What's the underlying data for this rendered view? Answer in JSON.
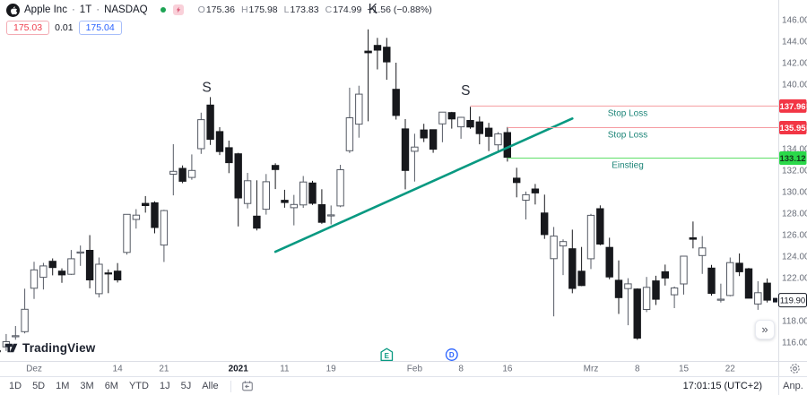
{
  "header": {
    "symbol": "Apple Inc",
    "sep": "·",
    "interval": "1T",
    "exchange": "NASDAQ",
    "ohlc": [
      {
        "label": "O",
        "value": "175.36"
      },
      {
        "label": "H",
        "value": "175.98"
      },
      {
        "label": "L",
        "value": "173.83"
      },
      {
        "label": "C",
        "value": "174.99"
      }
    ],
    "change": "−1.56 (−0.88%)",
    "bid": "175.03",
    "spread": "0.01",
    "ask": "175.04"
  },
  "watermark": {
    "text": "TradingView"
  },
  "toolbar": {
    "ranges": [
      "1D",
      "5D",
      "1M",
      "3M",
      "6M",
      "YTD",
      "1J",
      "5J",
      "Alle"
    ],
    "clock": "17:01:15 (UTC+2)",
    "adjust_label": "Anp.",
    "scroll_glyph": "»"
  },
  "chart_data": {
    "type": "candlestick",
    "price_axis": {
      "ticks": [
        146,
        144,
        142,
        140,
        138,
        136,
        134,
        132,
        130,
        128,
        126,
        124,
        122,
        120,
        118,
        116
      ],
      "visible_range": [
        114.2,
        147.8
      ]
    },
    "time_axis": {
      "ticks": [
        {
          "label": "Dez",
          "index": 4,
          "bold": false
        },
        {
          "label": "14",
          "index": 13,
          "bold": false
        },
        {
          "label": "21",
          "index": 18,
          "bold": false
        },
        {
          "label": "2021",
          "index": 26,
          "bold": true
        },
        {
          "label": "11",
          "index": 31,
          "bold": false
        },
        {
          "label": "19",
          "index": 36,
          "bold": false
        },
        {
          "label": "Feb",
          "index": 45,
          "bold": false
        },
        {
          "label": "8",
          "index": 50,
          "bold": false
        },
        {
          "label": "16",
          "index": 55,
          "bold": false
        },
        {
          "label": "Mrz",
          "index": 64,
          "bold": false
        },
        {
          "label": "8",
          "index": 69,
          "bold": false
        },
        {
          "label": "15",
          "index": 74,
          "bold": false
        },
        {
          "label": "22",
          "index": 79,
          "bold": false
        }
      ]
    },
    "styles": {
      "up_fill": "#ffffff",
      "up_border": "#555a64",
      "down_fill": "#17181c",
      "wick_up": "#555a64",
      "wick_down": "#17181c"
    },
    "candles": [
      [
        115.2,
        116.4,
        114.5,
        115.17
      ],
      [
        115.55,
        116.75,
        115.17,
        116.03
      ],
      [
        116.57,
        117.49,
        116.22,
        116.59
      ],
      [
        116.97,
        120.97,
        116.81,
        119.05
      ],
      [
        121.01,
        123.47,
        120.01,
        122.72
      ],
      [
        122.02,
        123.37,
        120.89,
        123.08
      ],
      [
        123.52,
        123.78,
        122.21,
        122.94
      ],
      [
        122.6,
        122.86,
        121.52,
        122.25
      ],
      [
        122.31,
        124.57,
        122.25,
        123.75
      ],
      [
        124.37,
        124.98,
        123.09,
        124.38
      ],
      [
        124.53,
        125.95,
        121.0,
        121.78
      ],
      [
        120.5,
        123.87,
        120.15,
        123.24
      ],
      [
        122.43,
        122.76,
        120.55,
        122.41
      ],
      [
        122.6,
        123.35,
        121.54,
        121.78
      ],
      [
        124.34,
        127.9,
        124.13,
        127.88
      ],
      [
        127.41,
        128.37,
        126.56,
        127.81
      ],
      [
        128.9,
        129.58,
        128.04,
        128.7
      ],
      [
        128.96,
        129.1,
        126.12,
        126.66
      ],
      [
        125.02,
        128.31,
        123.45,
        128.23
      ],
      [
        131.61,
        134.41,
        129.65,
        131.88
      ],
      [
        132.16,
        132.43,
        130.78,
        130.96
      ],
      [
        131.32,
        133.46,
        131.1,
        131.97
      ],
      [
        133.99,
        137.34,
        133.51,
        136.69
      ],
      [
        138.05,
        138.79,
        134.34,
        134.87
      ],
      [
        135.58,
        135.99,
        133.4,
        133.72
      ],
      [
        134.08,
        134.74,
        131.72,
        132.69
      ],
      [
        133.52,
        133.61,
        126.76,
        129.41
      ],
      [
        128.89,
        131.74,
        128.43,
        131.01
      ],
      [
        127.72,
        131.05,
        126.38,
        126.6
      ],
      [
        128.36,
        131.63,
        127.86,
        130.92
      ],
      [
        132.43,
        132.63,
        130.23,
        132.05
      ],
      [
        129.19,
        130.17,
        128.5,
        128.98
      ],
      [
        128.5,
        129.69,
        126.86,
        128.8
      ],
      [
        128.76,
        131.45,
        128.49,
        130.89
      ],
      [
        130.8,
        131.0,
        128.76,
        128.91
      ],
      [
        128.78,
        130.22,
        127.0,
        127.14
      ],
      [
        127.78,
        128.71,
        126.94,
        127.83
      ],
      [
        128.66,
        132.49,
        128.55,
        132.03
      ],
      [
        133.8,
        139.67,
        133.59,
        136.87
      ],
      [
        136.28,
        139.85,
        135.02,
        139.07
      ],
      [
        143.07,
        145.09,
        136.54,
        142.92
      ],
      [
        143.6,
        144.3,
        141.37,
        143.16
      ],
      [
        143.43,
        144.3,
        140.41,
        142.06
      ],
      [
        139.52,
        141.99,
        136.7,
        137.09
      ],
      [
        135.83,
        136.74,
        130.21,
        131.96
      ],
      [
        133.75,
        135.38,
        130.93,
        134.14
      ],
      [
        135.73,
        136.31,
        134.61,
        134.99
      ],
      [
        135.76,
        135.77,
        133.61,
        133.94
      ],
      [
        136.3,
        137.4,
        134.59,
        137.39
      ],
      [
        137.35,
        137.42,
        135.86,
        136.76
      ],
      [
        136.03,
        136.96,
        134.92,
        136.91
      ],
      [
        136.62,
        137.88,
        135.85,
        136.01
      ],
      [
        136.48,
        136.99,
        134.4,
        135.39
      ],
      [
        135.9,
        136.39,
        133.77,
        135.13
      ],
      [
        134.35,
        135.53,
        133.69,
        135.37
      ],
      [
        135.49,
        136.01,
        132.79,
        133.19
      ],
      [
        131.25,
        132.22,
        129.47,
        130.84
      ],
      [
        129.2,
        130.0,
        127.41,
        129.71
      ],
      [
        130.24,
        130.71,
        128.8,
        129.87
      ],
      [
        128.01,
        129.72,
        125.6,
        126.0
      ],
      [
        123.76,
        126.71,
        118.39,
        125.86
      ],
      [
        124.94,
        125.56,
        122.23,
        125.35
      ],
      [
        124.68,
        126.46,
        120.54,
        120.99
      ],
      [
        122.59,
        124.85,
        121.2,
        121.26
      ],
      [
        123.75,
        127.93,
        122.79,
        127.79
      ],
      [
        128.41,
        128.72,
        125.01,
        125.12
      ],
      [
        124.81,
        125.71,
        121.84,
        122.06
      ],
      [
        121.75,
        123.6,
        118.62,
        120.13
      ],
      [
        120.98,
        121.94,
        117.57,
        121.42
      ],
      [
        120.93,
        121.0,
        116.21,
        116.36
      ],
      [
        119.03,
        122.06,
        118.79,
        121.09
      ],
      [
        121.69,
        122.17,
        119.45,
        119.98
      ],
      [
        122.54,
        123.21,
        121.26,
        121.96
      ],
      [
        120.4,
        121.17,
        119.16,
        121.03
      ],
      [
        121.41,
        124.0,
        120.42,
        123.99
      ],
      [
        125.7,
        127.22,
        124.72,
        125.57
      ],
      [
        124.05,
        125.86,
        122.34,
        124.76
      ],
      [
        122.88,
        123.18,
        120.32,
        120.53
      ],
      [
        119.9,
        121.43,
        119.68,
        119.99
      ],
      [
        120.33,
        123.87,
        120.26,
        123.39
      ],
      [
        123.33,
        124.24,
        122.14,
        122.54
      ],
      [
        122.82,
        122.9,
        120.07,
        120.09
      ],
      [
        119.54,
        121.66,
        119.0,
        120.59
      ],
      [
        121.48,
        121.92,
        119.68,
        119.9
      ]
    ],
    "pattern_labels": [
      {
        "text": "S",
        "index": 22.6,
        "price": 139.7
      },
      {
        "text": "K",
        "index": 40.5,
        "price": 147.0
      },
      {
        "text": "S",
        "index": 50.5,
        "price": 139.4
      }
    ],
    "trendline": {
      "from_index": 30,
      "from_price": 124.4,
      "to_index": 62,
      "to_price": 136.8,
      "color": "#089981"
    },
    "levels": [
      {
        "label": "Stop Loss",
        "price": 137.96,
        "start_index": 51,
        "line_color": "#f59ba1",
        "label_color": "#1d8578",
        "tag_bg": "#f23645",
        "tag_color": "#ffffff"
      },
      {
        "label": "Stop Loss",
        "price": 135.95,
        "start_index": 55,
        "line_color": "#f59ba1",
        "label_color": "#1d8578",
        "tag_bg": "#f23645",
        "tag_color": "#ffffff"
      },
      {
        "label": "Einstieg",
        "price": 133.12,
        "start_index": 55,
        "line_color": "#5ede68",
        "label_color": "#1d8578",
        "tag_bg": "#2bd94a",
        "tag_color": "#14371c"
      }
    ],
    "last_price": {
      "value": 119.9,
      "label": "119.90"
    },
    "events": [
      {
        "label": "E",
        "index": 42,
        "shape": "pentagon",
        "color": "#089981"
      },
      {
        "label": "D",
        "index": 49,
        "shape": "circle",
        "color": "#2962ff"
      }
    ]
  }
}
